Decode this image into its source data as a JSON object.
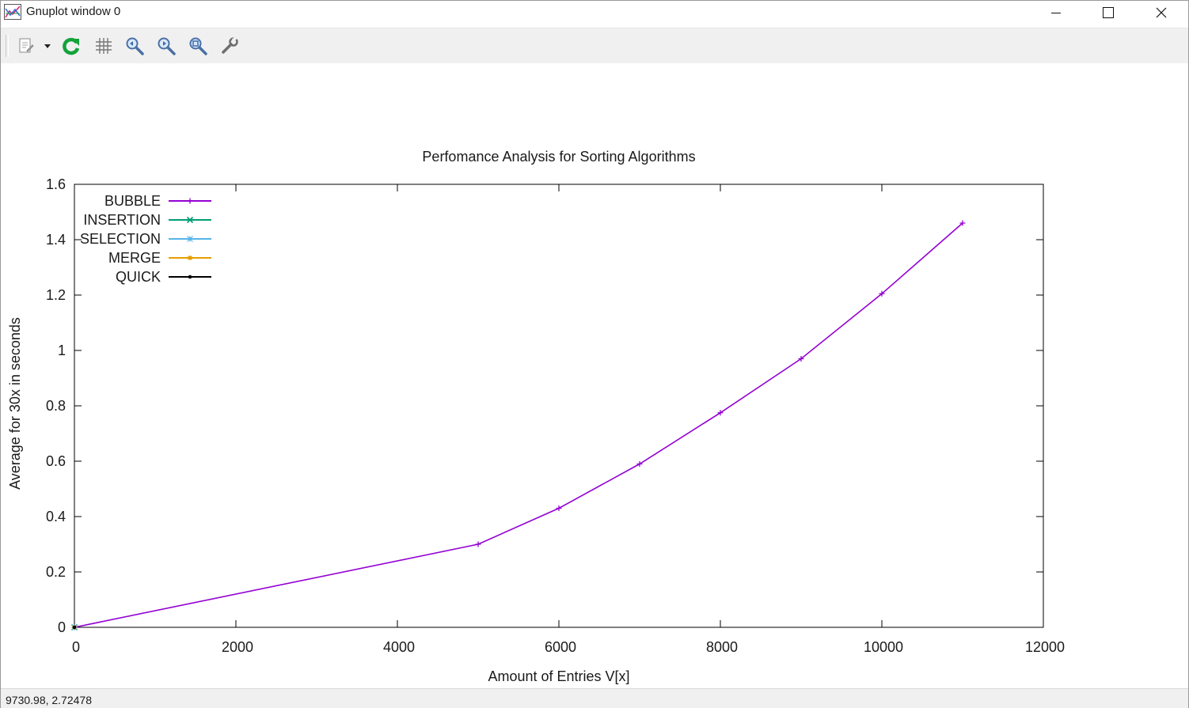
{
  "window": {
    "title": "Gnuplot window 0",
    "controls": {
      "minimize_icon": "minimize-icon",
      "maximize_icon": "maximize-icon",
      "close_icon": "close-icon"
    }
  },
  "toolbar": {
    "buttons": [
      {
        "name": "copy-to-clipboard-button",
        "icon": "clipboard-icon"
      },
      {
        "name": "copy-options-dropdown",
        "icon": "chevron-down-icon"
      },
      {
        "name": "replot-button",
        "icon": "refresh-icon"
      },
      {
        "name": "toggle-grid-button",
        "icon": "grid-icon"
      },
      {
        "name": "previous-zoom-button",
        "icon": "zoom-previous-icon"
      },
      {
        "name": "next-zoom-button",
        "icon": "zoom-next-icon"
      },
      {
        "name": "autoscale-button",
        "icon": "zoom-autoscale-icon"
      },
      {
        "name": "options-button",
        "icon": "wrench-icon"
      }
    ]
  },
  "status": {
    "coordinates": "9730.98,  2.72478"
  },
  "chart_data": {
    "type": "line",
    "title": "Perfomance Analysis for Sorting Algorithms",
    "xlabel": "Amount of Entries V[x]",
    "ylabel": "Average for 30x in seconds",
    "xlim": [
      0,
      12000
    ],
    "ylim": [
      0,
      1.6
    ],
    "xticks": [
      0,
      2000,
      4000,
      6000,
      8000,
      10000,
      12000
    ],
    "yticks": [
      0,
      0.2,
      0.4,
      0.6,
      0.8,
      1,
      1.2,
      1.4,
      1.6
    ],
    "xtick_labels": [
      "0",
      "2000",
      "4000",
      "6000",
      "8000",
      "10000",
      "12000"
    ],
    "ytick_labels": [
      "0",
      "0.2",
      "0.4",
      "0.6",
      "0.8",
      "1",
      "1.2",
      "1.4",
      "1.6"
    ],
    "grid": false,
    "legend_position": "top-left",
    "series": [
      {
        "name": "BUBBLE",
        "color": "#9400d3",
        "marker": "plus",
        "points": [
          [
            0,
            0
          ],
          [
            5000,
            0.3
          ],
          [
            6000,
            0.43
          ],
          [
            7000,
            0.59
          ],
          [
            8000,
            0.775
          ],
          [
            9000,
            0.97
          ],
          [
            10000,
            1.205
          ],
          [
            11000,
            1.46
          ]
        ]
      },
      {
        "name": "INSERTION",
        "color": "#009e73",
        "marker": "cross",
        "points": [
          [
            0,
            0
          ]
        ]
      },
      {
        "name": "SELECTION",
        "color": "#56b4e9",
        "marker": "star",
        "points": [
          [
            0,
            0
          ]
        ]
      },
      {
        "name": "MERGE",
        "color": "#e69f00",
        "marker": "square",
        "points": [
          [
            0,
            0
          ]
        ]
      },
      {
        "name": "QUICK",
        "color": "#000000",
        "marker": "dot",
        "points": [
          [
            0,
            0
          ]
        ]
      }
    ]
  }
}
